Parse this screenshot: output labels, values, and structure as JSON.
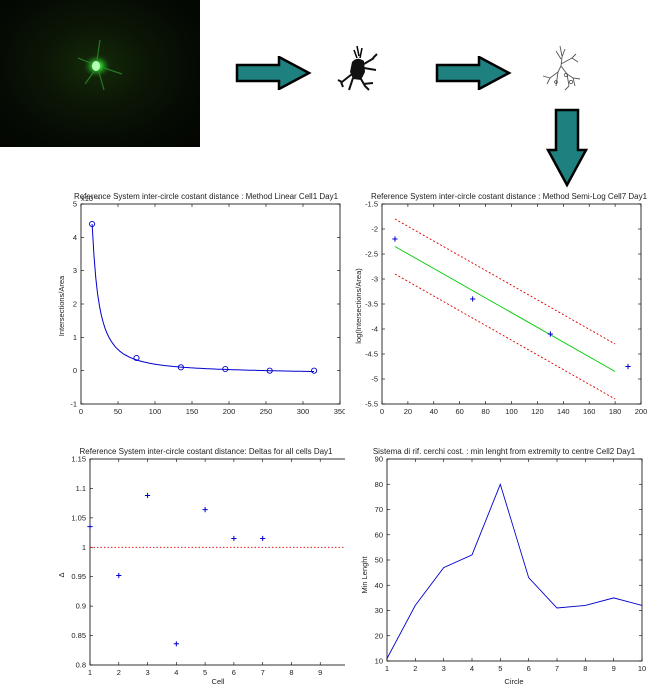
{
  "images": {
    "micrograph": "fluorescence-micrograph",
    "filled_neuron": "segmented-neuron",
    "skeleton_neuron": "skeletonized-neuron",
    "arrow_color": "#1f8080"
  },
  "chart_data": [
    {
      "type": "scatter",
      "title": "Reference System inter-circle costant distance : Method Linear Cell1 Day1",
      "xlabel": "",
      "ylabel": "Intersections/Area",
      "corner_label": "x10⁻⁴",
      "xlim": [
        0,
        350
      ],
      "ylim": [
        -1,
        5
      ],
      "xticks": [
        0,
        50,
        100,
        150,
        200,
        250,
        300,
        350
      ],
      "yticks": [
        -1,
        0,
        1,
        2,
        3,
        4,
        5
      ],
      "color": "#0000cc",
      "points": {
        "x": [
          15,
          75,
          135,
          195,
          255,
          315
        ],
        "y": [
          4.4,
          0.38,
          0.1,
          0.05,
          0.0,
          0.0
        ]
      },
      "fit_curve": "power-law decay",
      "grid": false
    },
    {
      "type": "scatter",
      "title": "Reference System inter-circle costant distance : Method Semi-Log Cell7 Day1",
      "xlabel": "",
      "ylabel": "log(Intersections/Area)",
      "xlim": [
        0,
        200
      ],
      "ylim": [
        -5.5,
        -1.5
      ],
      "xticks": [
        0,
        20,
        40,
        60,
        80,
        100,
        120,
        140,
        160,
        180,
        200
      ],
      "yticks": [
        -5.5,
        -5,
        -4.5,
        -4,
        -3.5,
        -3,
        -2.5,
        -2,
        -1.5
      ],
      "points": {
        "x": [
          10,
          70,
          130,
          190
        ],
        "y": [
          -2.2,
          -3.4,
          -4.1,
          -4.75
        ]
      },
      "fit_line": {
        "x": [
          10,
          180
        ],
        "y": [
          -2.35,
          -4.85
        ],
        "color": "#00cc00"
      },
      "confidence_band": {
        "offset": 0.55,
        "color": "#dd0000"
      },
      "point_color": "#0000cc",
      "grid": false
    },
    {
      "type": "scatter",
      "title": "Reference System inter-circle costant distance: Deltas for all cells Day1",
      "xlabel": "Cell",
      "ylabel": "Δ",
      "xlim": [
        1,
        10
      ],
      "ylim": [
        0.8,
        1.15
      ],
      "xticks": [
        1,
        2,
        3,
        4,
        5,
        6,
        7,
        8,
        9,
        10
      ],
      "yticks": [
        0.8,
        0.85,
        0.9,
        0.95,
        1,
        1.05,
        1.1,
        1.15
      ],
      "points": {
        "x": [
          1,
          2,
          3,
          4,
          5,
          6,
          7
        ],
        "y": [
          1.035,
          0.952,
          1.088,
          0.836,
          1.064,
          1.015,
          1.015
        ]
      },
      "reference_line": {
        "y": 1,
        "color": "#dd0000"
      },
      "point_color": "#0000cc",
      "grid": false
    },
    {
      "type": "line",
      "title": "Sistema di rif. cerchi cost. : min lenght from extremity to centre Cell2 Day1",
      "xlabel": "Circle",
      "ylabel": "Min Lenght",
      "xlim": [
        1,
        10
      ],
      "ylim": [
        10,
        90
      ],
      "xticks": [
        1,
        2,
        3,
        4,
        5,
        6,
        7,
        8,
        9,
        10
      ],
      "yticks": [
        10,
        20,
        30,
        40,
        50,
        60,
        70,
        80,
        90
      ],
      "x": [
        1,
        2,
        3,
        4,
        5,
        6,
        7,
        8,
        9,
        10
      ],
      "y": [
        11,
        32,
        47,
        52,
        80,
        43,
        31,
        32,
        35,
        32
      ],
      "color": "#0000cc",
      "grid": false
    }
  ]
}
